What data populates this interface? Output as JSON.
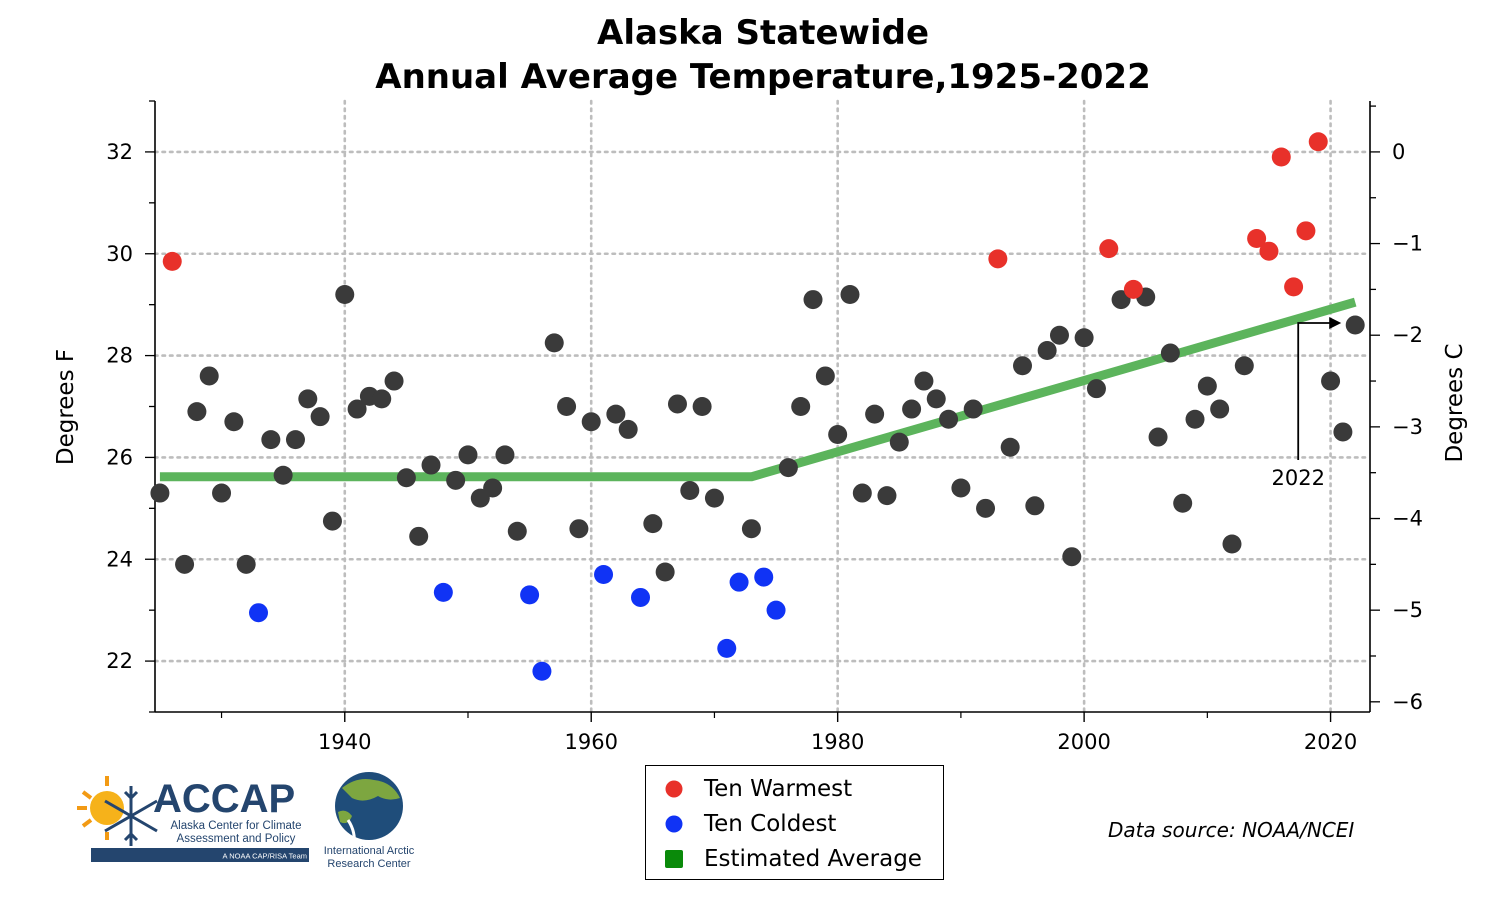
{
  "chart_data": {
    "type": "scatter",
    "title": [
      "Alaska Statewide",
      "Annual Average Temperature,1925-2022"
    ],
    "ylabel": "Degrees F",
    "ylabel_right": "Degrees C",
    "xlim": [
      1924.6,
      2023.2
    ],
    "ylim": [
      21,
      33
    ],
    "ylim_right_c": [
      -6.11,
      0.56
    ],
    "x_ticks": [
      1940,
      1960,
      1980,
      2000,
      2020
    ],
    "x_minor_ticks": [
      1930,
      1950,
      1970,
      1990,
      2010
    ],
    "y_ticks_f": [
      22,
      24,
      26,
      28,
      30,
      32
    ],
    "y_ticks_c": [
      0,
      -1,
      -2,
      -3,
      -4,
      -5,
      -6
    ],
    "y_tick_labels_c": [
      "0",
      "−1",
      "−2",
      "−3",
      "−4",
      "−5",
      "−6"
    ],
    "grid": true,
    "series": [
      {
        "name": "Ten Warmest",
        "color": "#e8312a",
        "x": [
          1926,
          1993,
          2002,
          2004,
          2014,
          2015,
          2016,
          2017,
          2018,
          2019
        ],
        "y": [
          29.85,
          29.9,
          30.1,
          29.3,
          30.3,
          30.05,
          31.9,
          29.35,
          30.45,
          32.2
        ]
      },
      {
        "name": "Ten Coldest",
        "color": "#1033f5",
        "x": [
          1933,
          1948,
          1955,
          1956,
          1961,
          1964,
          1971,
          1972,
          1974,
          1975
        ],
        "y": [
          22.95,
          23.35,
          23.3,
          21.8,
          23.7,
          23.25,
          22.25,
          23.55,
          23.65,
          23.0
        ]
      },
      {
        "name": "Other years",
        "color": "#3a3a3a",
        "x": [
          1925,
          1927,
          1928,
          1929,
          1930,
          1931,
          1932,
          1934,
          1935,
          1936,
          1937,
          1938,
          1939,
          1940,
          1941,
          1942,
          1943,
          1944,
          1945,
          1946,
          1947,
          1949,
          1950,
          1951,
          1952,
          1953,
          1954,
          1957,
          1958,
          1959,
          1960,
          1962,
          1963,
          1965,
          1966,
          1967,
          1968,
          1969,
          1970,
          1973,
          1976,
          1977,
          1978,
          1979,
          1980,
          1981,
          1982,
          1983,
          1984,
          1985,
          1986,
          1987,
          1988,
          1989,
          1990,
          1991,
          1992,
          1994,
          1995,
          1996,
          1997,
          1998,
          1999,
          2000,
          2001,
          2003,
          2005,
          2006,
          2007,
          2008,
          2009,
          2010,
          2011,
          2012,
          2013,
          2020,
          2021,
          2022
        ],
        "y": [
          25.3,
          23.9,
          26.9,
          27.6,
          25.3,
          26.7,
          23.9,
          26.35,
          25.65,
          26.35,
          27.15,
          26.8,
          24.75,
          29.2,
          26.95,
          27.2,
          27.15,
          27.5,
          25.6,
          24.45,
          25.85,
          25.55,
          26.05,
          25.2,
          25.4,
          26.05,
          24.55,
          28.25,
          27.0,
          24.6,
          26.7,
          26.85,
          26.55,
          24.7,
          23.75,
          27.05,
          25.35,
          27.0,
          25.2,
          24.6,
          25.8,
          27.0,
          29.1,
          27.6,
          26.45,
          29.2,
          25.3,
          26.85,
          25.25,
          26.3,
          26.95,
          27.5,
          27.15,
          26.75,
          25.4,
          26.95,
          25.0,
          26.2,
          27.8,
          25.05,
          28.1,
          28.4,
          24.05,
          28.35,
          27.35,
          29.1,
          29.15,
          26.4,
          28.05,
          25.1,
          26.75,
          27.4,
          26.95,
          24.3,
          27.8,
          27.5,
          26.5,
          28.6
        ]
      }
    ],
    "trend": {
      "name": "Estimated Average",
      "color": "#5cb45c",
      "points": [
        [
          1925,
          25.62
        ],
        [
          1973,
          25.62
        ],
        [
          2022,
          29.05
        ]
      ]
    },
    "annotation": {
      "text": "2022",
      "x": 2022,
      "y": 28.6
    }
  },
  "legend": {
    "items": [
      {
        "label": "Ten Warmest",
        "color": "#e8312a",
        "shape": "circle"
      },
      {
        "label": "Ten Coldest",
        "color": "#1033f5",
        "shape": "circle"
      },
      {
        "label": "Estimated Average",
        "color": "#0a8a0a",
        "shape": "square"
      }
    ]
  },
  "source_note": "Data source: NOAA/NCEI",
  "logos": {
    "accap": {
      "name": "ACCAP",
      "line1": "Alaska Center for Climate",
      "line2": "Assessment and Policy",
      "tag": "A NOAA CAP/RISA Team"
    },
    "iarc": {
      "line1": "International Arctic",
      "line2": "Research Center"
    }
  }
}
